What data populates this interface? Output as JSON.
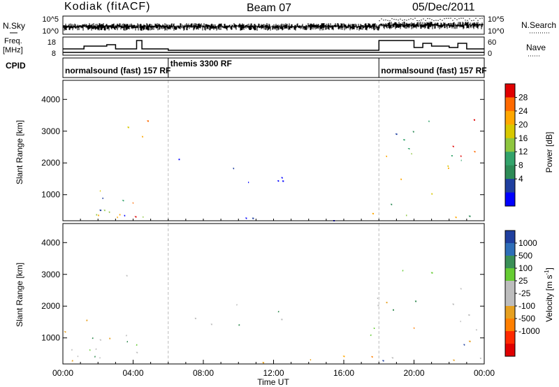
{
  "header": {
    "station": "Kodiak (fitACF)",
    "beam": "Beam 07",
    "date": "05/Dec/2011"
  },
  "strip_panels": {
    "nsky": {
      "label": "N.Sky",
      "ticks": [
        "10^5",
        "10^0"
      ],
      "right_label": "N.Search",
      "right_ticks": [
        "10^5",
        "10^0"
      ]
    },
    "freq": {
      "label_line1": "Freq.",
      "label_line2": "[MHz]",
      "ticks": [
        "18",
        "8"
      ],
      "right_label": "Nave",
      "right_ticks": [
        "60",
        "0"
      ]
    },
    "cpid": {
      "label": "CPID",
      "programs": [
        {
          "name": "normalsound (fast) 157 RF",
          "start_hour": 0
        },
        {
          "name": "themis 3300 RF",
          "start_hour": 6
        },
        {
          "name": "normalsound (fast) 157 RF",
          "start_hour": 18
        }
      ]
    }
  },
  "chart_data": [
    {
      "type": "heatmap",
      "title": "",
      "xlabel": "",
      "ylabel": "Slant Range [km]",
      "xlim_hours": [
        0,
        24
      ],
      "ylim": [
        180,
        4600
      ],
      "yticks": [
        1000,
        2000,
        3000,
        4000
      ],
      "grid": false,
      "colorbar": {
        "label": "Power [dB]",
        "ticks": [
          "28",
          "24",
          "20",
          "16",
          "12",
          "8",
          "4"
        ],
        "colors": [
          "#e00000",
          "#ff6a00",
          "#ffa700",
          "#d8c800",
          "#8ec63f",
          "#33a36b",
          "#2e8b57",
          "#1f3f9f",
          "#0000ff"
        ]
      },
      "scatter_regions": [
        {
          "t0": 0.0,
          "t1": 4.8,
          "r0": 300,
          "r1": 3500,
          "level": "mixed-high"
        },
        {
          "t0": 5.2,
          "t1": 12.5,
          "r0": 1400,
          "r1": 2200,
          "level": "low"
        },
        {
          "t0": 6.0,
          "t1": 18.0,
          "r0": 200,
          "r1": 450,
          "level": "low"
        },
        {
          "t0": 17.5,
          "t1": 24.0,
          "r0": 300,
          "r1": 3400,
          "level": "mixed-high"
        }
      ]
    },
    {
      "type": "heatmap",
      "title": "",
      "xlabel": "Time UT",
      "ylabel": "Slant Range [km]",
      "xlim_hours": [
        0,
        24
      ],
      "ylim": [
        180,
        4600
      ],
      "yticks": [
        1000,
        2000,
        3000,
        4000
      ],
      "xticks": [
        "00:00",
        "04:00",
        "08:00",
        "12:00",
        "16:00",
        "20:00",
        "00:00"
      ],
      "grid": false,
      "colorbar": {
        "label": "Velocity [m s",
        "label_sup": "-1",
        "label_end": "]",
        "ticks": [
          "1000",
          "500",
          "100",
          "25",
          "-25",
          "-100",
          "-500",
          "-1000"
        ],
        "colors": [
          "#1f3f9f",
          "#2e6eb8",
          "#3a8f57",
          "#66cc33",
          "#bdbdbd",
          "#bdbdbd",
          "#e6a020",
          "#ff7f00",
          "#ff2a00",
          "#e00000"
        ]
      },
      "scatter_regions": [
        {
          "t0": 0.0,
          "t1": 4.8,
          "r0": 300,
          "r1": 3500,
          "level": "mostly-gray"
        },
        {
          "t0": 5.2,
          "t1": 12.5,
          "r0": 1400,
          "r1": 2200,
          "level": "green"
        },
        {
          "t0": 6.0,
          "t1": 18.0,
          "r0": 200,
          "r1": 450,
          "level": "yellow-orange"
        },
        {
          "t0": 17.5,
          "t1": 24.0,
          "r0": 300,
          "r1": 3400,
          "level": "mixed"
        }
      ]
    }
  ]
}
